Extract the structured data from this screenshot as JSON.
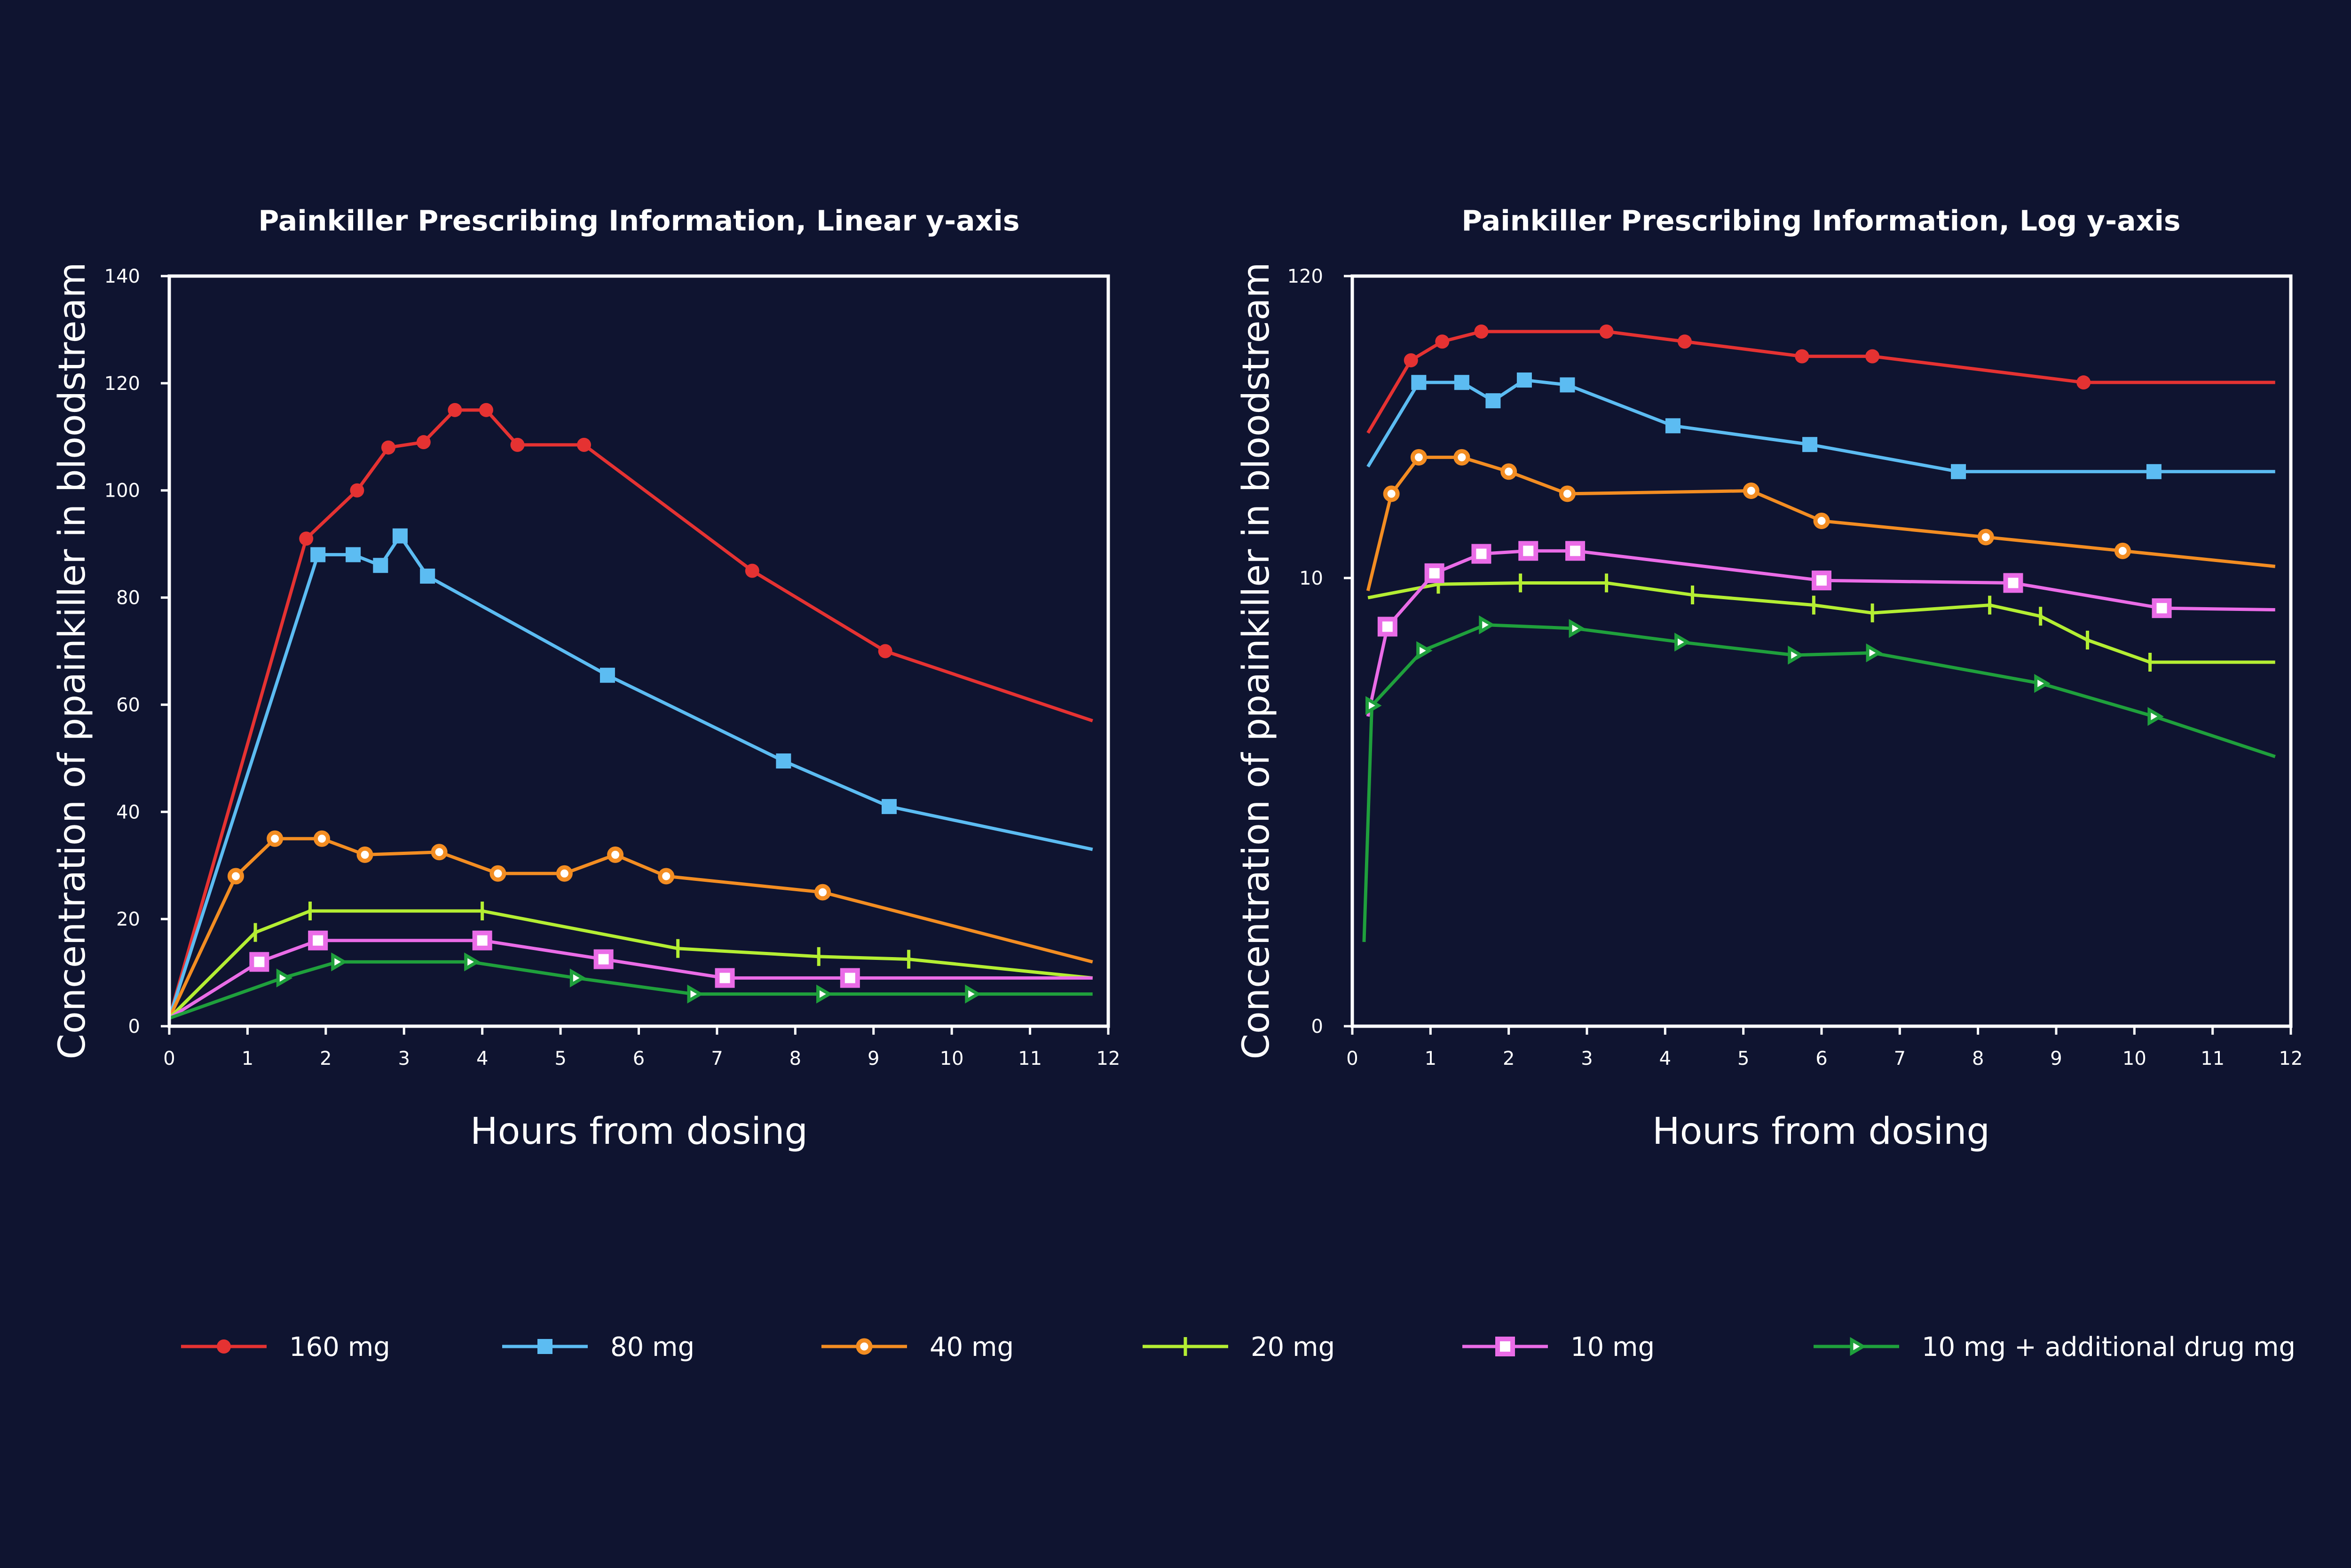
{
  "legend": [
    {
      "name": "160 mg",
      "color": "#e53232",
      "marker": "circle"
    },
    {
      "name": "80 mg",
      "color": "#5cbcf2",
      "marker": "square"
    },
    {
      "name": "40 mg",
      "color": "#f38d22",
      "marker": "ring"
    },
    {
      "name": "20 mg",
      "color": "#b4ee33",
      "marker": "plus"
    },
    {
      "name": "10 mg",
      "color": "#ea6ce7",
      "marker": "hollow-square"
    },
    {
      "name": "10 mg + additional drug mg",
      "color": "#1fa03c",
      "marker": "triangle"
    }
  ],
  "chart_data": [
    {
      "type": "line",
      "title": "Painkiller Prescribing Information, Linear y-axis",
      "xlabel": "Hours from dosing",
      "ylabel": "Concentration of ppainkiller in bloodstream",
      "xlim": [
        0,
        12
      ],
      "ylim": [
        0,
        140
      ],
      "yscale": "linear",
      "xticks": [
        0,
        1,
        2,
        3,
        4,
        5,
        6,
        7,
        8,
        9,
        10,
        11,
        12
      ],
      "xtick_labels": [
        "0",
        "1",
        "2",
        "3",
        "4",
        "5",
        "6",
        "7",
        "8",
        "9",
        "10",
        "11",
        "12"
      ],
      "yticks": [
        0,
        20,
        40,
        60,
        80,
        100,
        120,
        140
      ],
      "ytick_labels": [
        "0",
        "20",
        "40",
        "60",
        "80",
        "100",
        "120",
        "140"
      ],
      "grid": false,
      "series": [
        {
          "name": "160 mg",
          "x": [
            0,
            1.75,
            2.4,
            2.8,
            3.25,
            3.65,
            4.05,
            4.45,
            5.3,
            7.45,
            9.15,
            11.8
          ],
          "y": [
            1.5,
            91,
            100,
            108,
            109,
            115,
            115,
            108.5,
            108.5,
            85,
            70,
            57
          ]
        },
        {
          "name": "80 mg",
          "x": [
            0,
            1.9,
            2.35,
            2.7,
            2.95,
            3.3,
            5.6,
            7.85,
            9.2,
            11.8
          ],
          "y": [
            1.5,
            88,
            88,
            86,
            91.5,
            84,
            65.5,
            49.5,
            41,
            33
          ]
        },
        {
          "name": "40 mg",
          "x": [
            0,
            0.85,
            1.35,
            1.95,
            2.5,
            3.45,
            4.2,
            5.05,
            5.7,
            6.35,
            8.35,
            11.8
          ],
          "y": [
            1.5,
            28,
            35,
            35,
            32,
            32.5,
            28.5,
            28.5,
            32,
            28,
            25,
            12
          ]
        },
        {
          "name": "20 mg",
          "x": [
            0,
            1.1,
            1.8,
            4.0,
            6.5,
            8.3,
            9.45,
            11.8
          ],
          "y": [
            1.5,
            17.5,
            21.5,
            21.5,
            14.5,
            13,
            12.5,
            9
          ]
        },
        {
          "name": "10 mg",
          "x": [
            0,
            1.15,
            1.9,
            4.0,
            5.55,
            7.1,
            8.7,
            11.8
          ],
          "y": [
            1.5,
            12,
            16,
            16,
            12.5,
            9,
            9,
            9
          ]
        },
        {
          "name": "10 mg + additional drug mg",
          "x": [
            0,
            1.45,
            2.15,
            3.85,
            5.2,
            6.7,
            8.35,
            10.25,
            11.8
          ],
          "y": [
            1.5,
            9,
            12,
            12,
            9,
            6,
            6,
            6,
            6
          ]
        }
      ]
    },
    {
      "type": "line",
      "title": "Painkiller Prescribing Information, Log y-axis",
      "xlabel": "Hours from dosing",
      "ylabel": "Concentration of ppainkiller in bloodstream",
      "xlim": [
        0,
        12
      ],
      "ylim": [
        0.25,
        120
      ],
      "yscale": "log",
      "xticks": [
        0,
        1,
        2,
        3,
        4,
        5,
        6,
        7,
        8,
        9,
        10,
        11,
        12
      ],
      "xtick_labels": [
        "0",
        "1",
        "2",
        "3",
        "4",
        "5",
        "6",
        "7",
        "8",
        "9",
        "10",
        "11",
        "12"
      ],
      "yticks": [
        0.25,
        10,
        120
      ],
      "ytick_labels": [
        "0",
        "10",
        "120"
      ],
      "grid": false,
      "series": [
        {
          "name": "160 mg",
          "x": [
            0.2,
            0.75,
            1.15,
            1.65,
            3.25,
            4.25,
            5.75,
            6.65,
            9.35,
            11.8
          ],
          "y": [
            33,
            60,
            70,
            76,
            76,
            70,
            62,
            62,
            50,
            50
          ]
        },
        {
          "name": "80 mg",
          "x": [
            0.2,
            0.85,
            1.4,
            1.8,
            2.2,
            2.75,
            4.1,
            5.85,
            7.75,
            10.25,
            11.8
          ],
          "y": [
            25,
            50,
            50,
            43,
            51,
            49,
            35,
            30,
            24,
            24,
            24
          ]
        },
        {
          "name": "40 mg",
          "x": [
            0.2,
            0.5,
            0.85,
            1.4,
            2.0,
            2.75,
            5.1,
            6.0,
            8.1,
            9.85,
            11.8
          ],
          "y": [
            9,
            20,
            27,
            27,
            24,
            20,
            20.5,
            16,
            14,
            12.5,
            11
          ]
        },
        {
          "name": "20 mg",
          "x": [
            0.2,
            1.1,
            2.15,
            3.25,
            4.35,
            5.9,
            6.65,
            8.15,
            8.8,
            9.4,
            10.2,
            11.8
          ],
          "y": [
            8.5,
            9.5,
            9.6,
            9.6,
            8.7,
            8,
            7.5,
            8,
            7.3,
            6,
            5,
            5
          ]
        },
        {
          "name": "10 mg",
          "x": [
            0.2,
            0.45,
            1.05,
            1.65,
            2.25,
            2.85,
            6.0,
            8.45,
            10.35,
            11.8
          ],
          "y": [
            3.2,
            6.7,
            10.4,
            12.2,
            12.5,
            12.5,
            9.8,
            9.6,
            7.8,
            7.7
          ]
        },
        {
          "name": "10 mg + additional drug mg",
          "x": [
            0.15,
            0.25,
            0.9,
            1.7,
            2.85,
            4.2,
            5.65,
            6.65,
            8.8,
            10.25,
            11.8
          ],
          "y": [
            0.5,
            3.5,
            5.5,
            6.8,
            6.6,
            5.9,
            5.3,
            5.4,
            4.2,
            3.2,
            2.3
          ]
        }
      ]
    }
  ]
}
